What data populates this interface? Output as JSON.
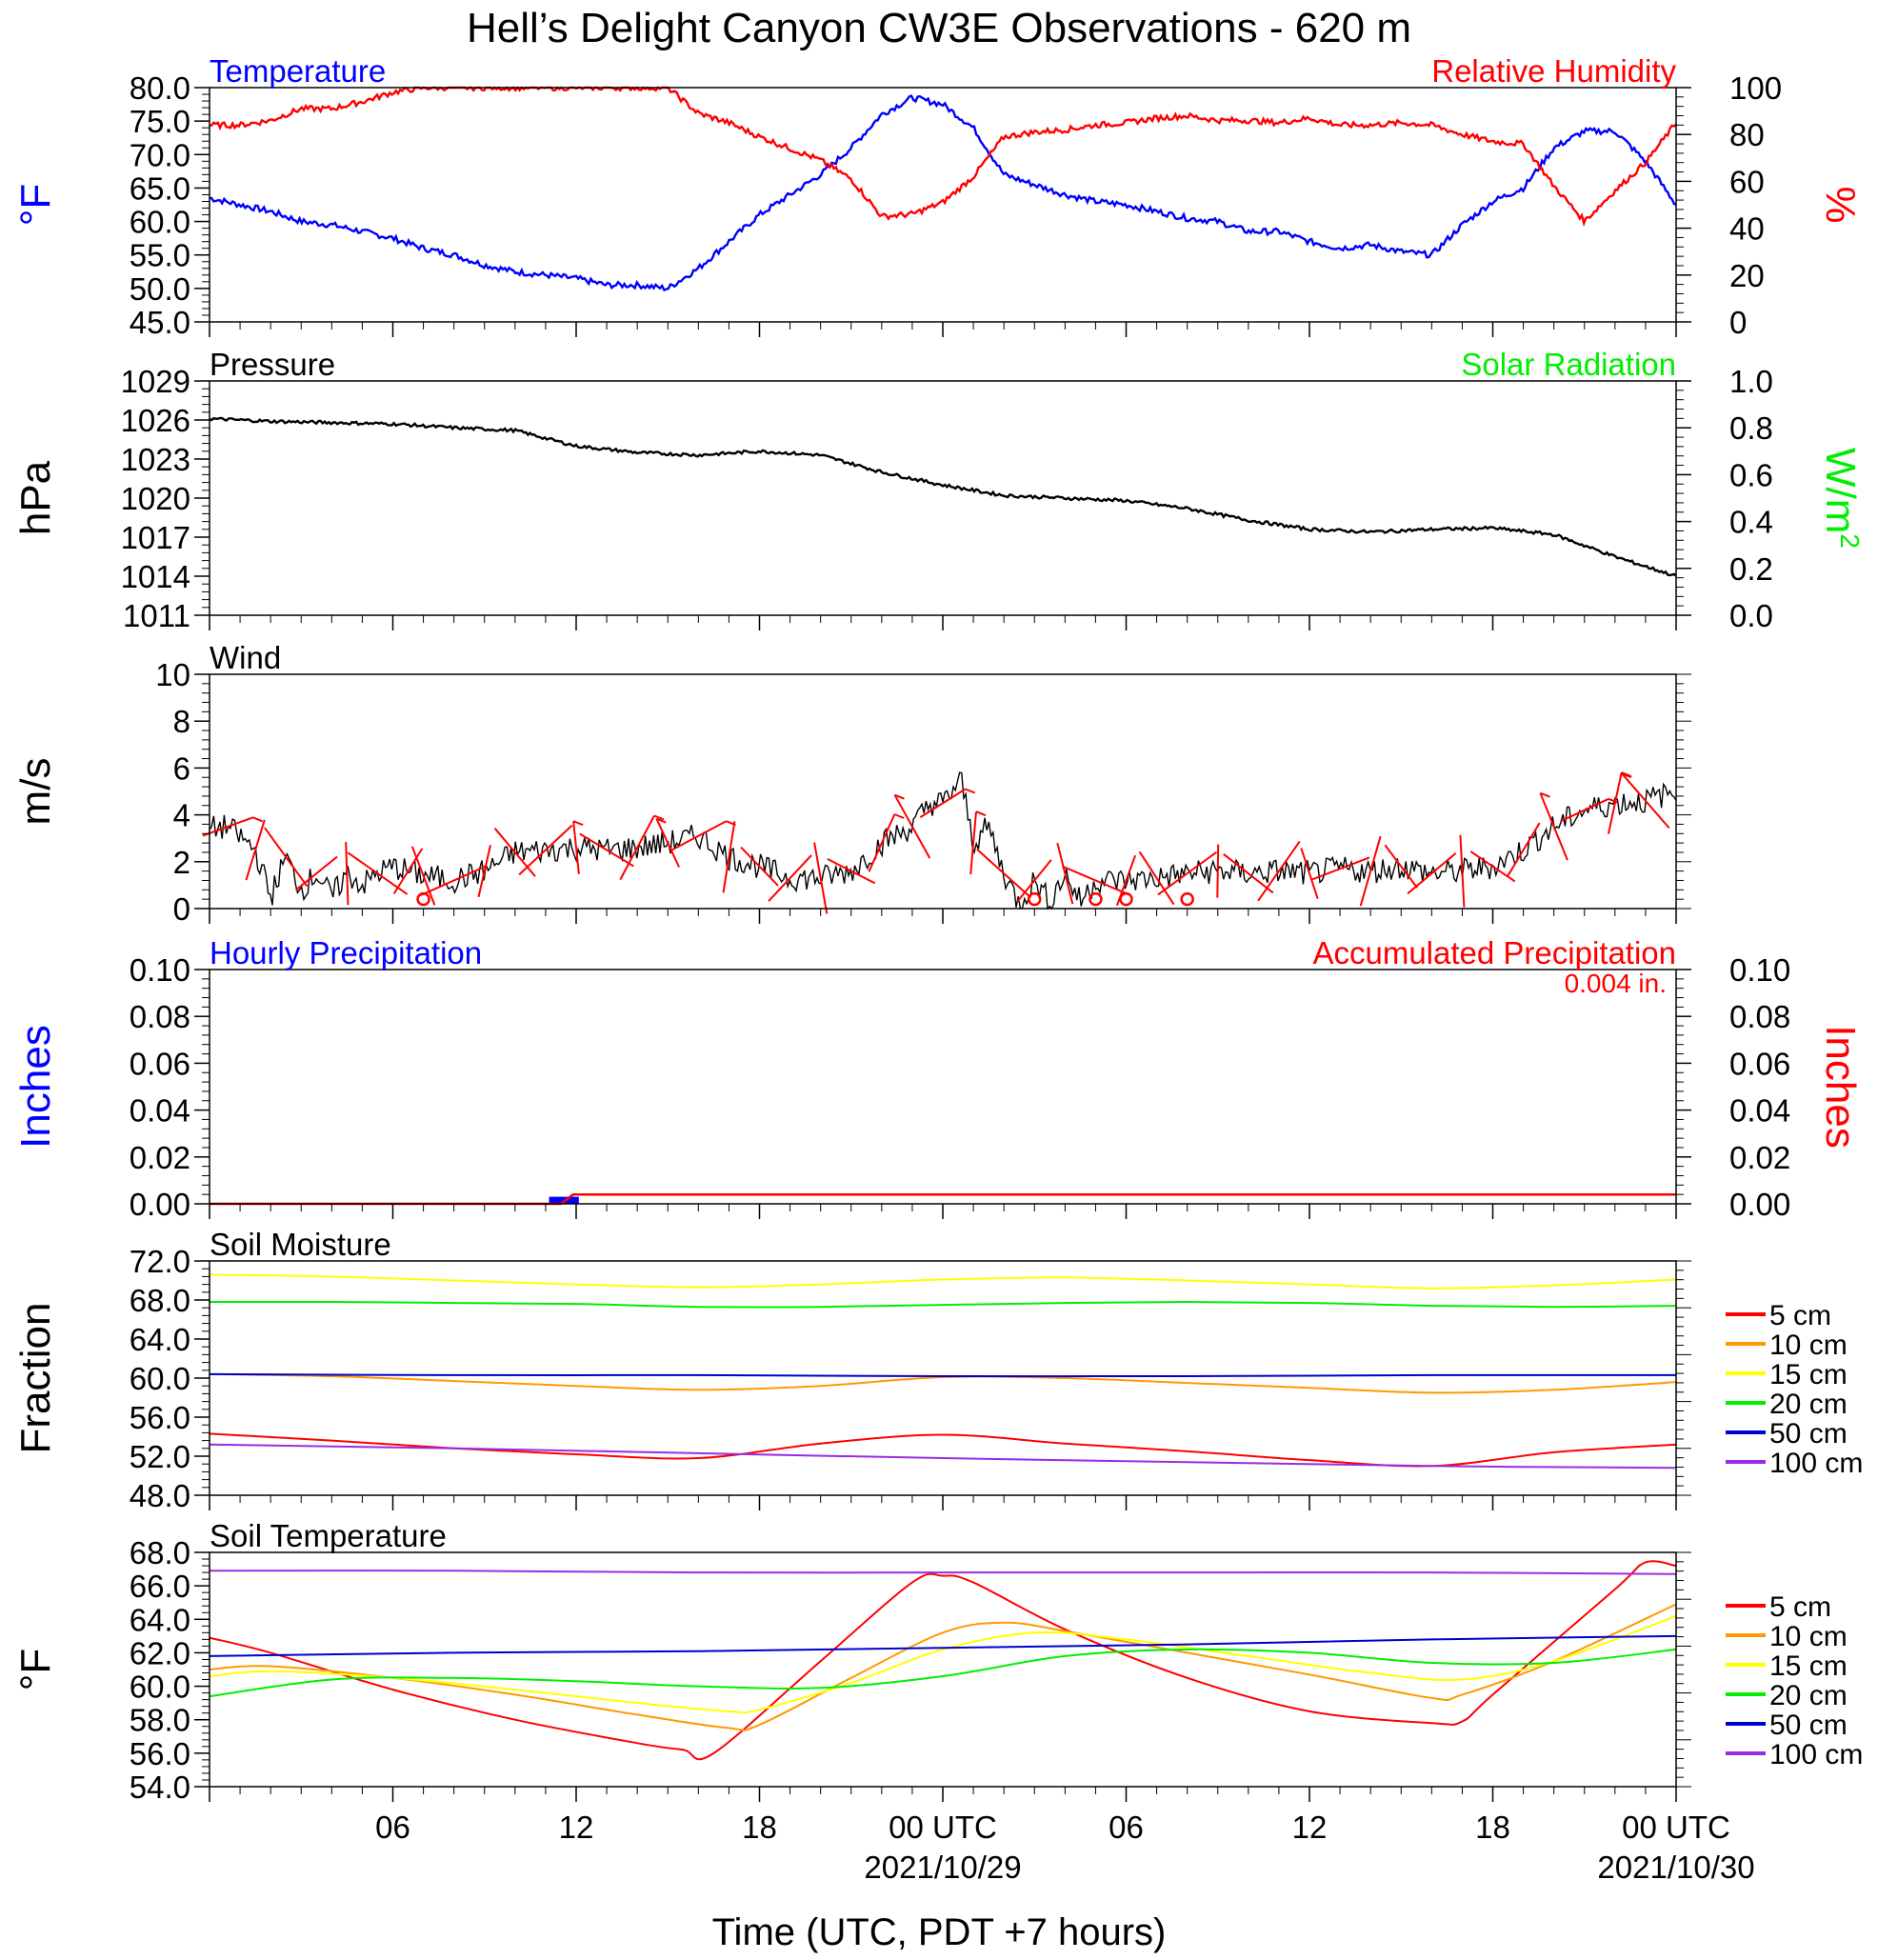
{
  "title": "Hell’s Delight Canyon CW3E Observations - 620 m",
  "x_axis": {
    "label": "Time (UTC, PDT +7 hours)",
    "ticks": [
      {
        "h": 6,
        "label": "06",
        "date": ""
      },
      {
        "h": 12,
        "label": "12",
        "date": ""
      },
      {
        "h": 18,
        "label": "18",
        "date": ""
      },
      {
        "h": 24,
        "label": "00 UTC",
        "date": "2021/10/29"
      },
      {
        "h": 30,
        "label": "06",
        "date": ""
      },
      {
        "h": 36,
        "label": "12",
        "date": ""
      },
      {
        "h": 42,
        "label": "18",
        "date": ""
      },
      {
        "h": 48,
        "label": "00 UTC",
        "date": "2021/10/30"
      }
    ]
  },
  "colors": {
    "blue": "#0000ff",
    "red": "#ff0000",
    "green": "#00ee00",
    "orange": "#ff9900",
    "yellow": "#ffff00",
    "purple": "#9a2be2",
    "black": "#000000"
  },
  "chart_data": [
    {
      "type": "line",
      "id": "temp_rh",
      "title_left": "Temperature",
      "title_right": "Relative Humidity",
      "ylabel_left": "°F",
      "ylabel_right": "%",
      "ylim_left": [
        45,
        80
      ],
      "yticks_left": [
        "45.0",
        "50.0",
        "55.0",
        "60.0",
        "65.0",
        "70.0",
        "75.0",
        "80.0"
      ],
      "ylim_right": [
        0,
        100
      ],
      "yticks_right": [
        "0",
        "20",
        "40",
        "60",
        "80",
        "100"
      ],
      "series": [
        {
          "name": "Temperature",
          "axis": "left",
          "color": "#0000ff",
          "noise": 0.45,
          "x": [
            0,
            1,
            2,
            3,
            4,
            5,
            6,
            7,
            8,
            9,
            10,
            11,
            12,
            13,
            14,
            15,
            16,
            17,
            18,
            19,
            20,
            21,
            22,
            23,
            24,
            25,
            26,
            27,
            28,
            29,
            30,
            31,
            32,
            33,
            34,
            35,
            36,
            37,
            38,
            39,
            40,
            41,
            42,
            43,
            44,
            45,
            46,
            47,
            48
          ],
          "y": [
            63.5,
            62.5,
            61.5,
            60,
            59.5,
            58.5,
            57.5,
            56,
            55,
            53.5,
            52.5,
            52,
            51.5,
            50.5,
            50.5,
            50,
            53,
            57,
            61,
            64,
            67,
            71,
            76,
            78.5,
            77.5,
            74,
            67,
            65.5,
            64,
            63,
            62.5,
            61.5,
            60.5,
            60,
            58.5,
            58.5,
            57,
            56,
            56.5,
            55.5,
            55,
            59.5,
            63,
            65,
            71,
            73.5,
            73.5,
            69,
            62.5
          ]
        },
        {
          "name": "Relative Humidity",
          "axis": "right",
          "color": "#ff0000",
          "noise": 1.2,
          "x": [
            0,
            1,
            2,
            3,
            4,
            5,
            6,
            7,
            8,
            9,
            10,
            11,
            12,
            13,
            14,
            15,
            16,
            17,
            18,
            19,
            20,
            21,
            22,
            23,
            24,
            25,
            26,
            27,
            28,
            29,
            30,
            31,
            32,
            33,
            34,
            35,
            36,
            37,
            38,
            39,
            40,
            41,
            42,
            43,
            44,
            45,
            46,
            47,
            48
          ],
          "y": [
            84,
            84,
            86,
            91,
            91,
            94,
            98,
            100,
            100,
            100,
            100,
            100,
            100,
            100,
            100,
            100,
            89,
            85,
            79,
            74,
            69,
            61,
            45,
            46,
            51,
            62,
            79,
            81,
            82,
            84,
            85,
            87,
            88,
            86,
            86,
            85,
            87,
            84,
            84,
            85,
            84,
            80,
            77,
            76,
            58,
            43,
            56,
            68,
            85
          ]
        }
      ]
    },
    {
      "type": "line",
      "id": "pressure",
      "title_left": "Pressure",
      "title_right": "Solar Radiation",
      "ylabel_left": "hPa",
      "ylabel_right": "W/m",
      "ylabel_right_sup": "2",
      "ylim_left": [
        1011,
        1029
      ],
      "yticks_left": [
        "1011",
        "1014",
        "1017",
        "1020",
        "1023",
        "1026",
        "1029"
      ],
      "ylim_right": [
        0,
        1
      ],
      "yticks_right": [
        "0.0",
        "0.2",
        "0.4",
        "0.6",
        "0.8",
        "1.0"
      ],
      "series": [
        {
          "name": "Pressure",
          "axis": "left",
          "color": "#000000",
          "noise": 0.12,
          "x": [
            0,
            2,
            4,
            6,
            8,
            10,
            12,
            14,
            16,
            18,
            20,
            22,
            24,
            26,
            28,
            30,
            32,
            34,
            36,
            38,
            40,
            42,
            44,
            46,
            48
          ],
          "y": [
            1026.1,
            1025.9,
            1025.8,
            1025.7,
            1025.4,
            1025.2,
            1024.0,
            1023.5,
            1023.3,
            1023.6,
            1023.3,
            1022.0,
            1021.0,
            1020.2,
            1020.0,
            1019.8,
            1019.2,
            1018.3,
            1017.6,
            1017.4,
            1017.6,
            1017.7,
            1017.2,
            1015.5,
            1014.0
          ]
        }
      ]
    },
    {
      "type": "line",
      "id": "wind",
      "title_left": "Wind",
      "ylabel_left": "m/s",
      "ylim_left": [
        0,
        10
      ],
      "yticks_left": [
        "0",
        "2",
        "4",
        "6",
        "8",
        "10"
      ],
      "series": [
        {
          "name": "Wind",
          "axis": "left",
          "color": "#000000",
          "noise": 0.55,
          "x": [
            0,
            0.6,
            1.5,
            2,
            2.5,
            3,
            3.5,
            4,
            4.5,
            5,
            5.5,
            6,
            7,
            8,
            9,
            10,
            11,
            12,
            13,
            14,
            15,
            16,
            17,
            18,
            19,
            20,
            21,
            22,
            23,
            23.6,
            24,
            24.6,
            25,
            25.5,
            26,
            26.5,
            27,
            27.5,
            28,
            28.5,
            29,
            30,
            31,
            32,
            33,
            34,
            35,
            36,
            37,
            38,
            39,
            40,
            41,
            42,
            43,
            44,
            45,
            46,
            47,
            48
          ],
          "y": [
            3.4,
            3.5,
            2.5,
            0.5,
            2.2,
            0.8,
            1.5,
            0.5,
            1.5,
            1.0,
            1.5,
            1.8,
            1.4,
            1.2,
            1.6,
            2.4,
            2.5,
            2.6,
            2.5,
            2.6,
            2.8,
            3.1,
            2.2,
            1.8,
            1.3,
            1.3,
            1.6,
            2.8,
            3.5,
            4.5,
            4.5,
            5.5,
            2.8,
            3.5,
            1.5,
            0.2,
            1.2,
            0.3,
            1.5,
            0.3,
            1.2,
            1.2,
            1.3,
            1.5,
            1.6,
            1.5,
            1.6,
            1.5,
            1.7,
            1.6,
            1.8,
            1.5,
            1.6,
            1.8,
            2.5,
            3.5,
            4.2,
            4.5,
            4.6,
            5.0
          ]
        }
      ],
      "barb_times": [
        0.6,
        1.5,
        2.5,
        3.5,
        4.5,
        5.5,
        6.5,
        7,
        8,
        9,
        10,
        11,
        12,
        13,
        14,
        15,
        16,
        17,
        18,
        19,
        20,
        21,
        22,
        23,
        24,
        25,
        26,
        27,
        28,
        29,
        30,
        31,
        32,
        33,
        34,
        35,
        36,
        37,
        38,
        39,
        40,
        41,
        42,
        43,
        44,
        45,
        46,
        47
      ],
      "calm_times": [
        7,
        27,
        29,
        30,
        32
      ],
      "barb_color": "#ff0000"
    },
    {
      "type": "bar",
      "id": "precip",
      "title_left": "Hourly Precipitation",
      "title_right": "Accumulated Precipitation",
      "annotation": "0.004 in.",
      "ylabel_left": "Inches",
      "ylabel_right": "Inches",
      "ylim_left": [
        0,
        0.1
      ],
      "yticks_left": [
        "0.00",
        "0.02",
        "0.04",
        "0.06",
        "0.08",
        "0.10"
      ],
      "ylim_right": [
        0,
        0.1
      ],
      "yticks_right": [
        "0.00",
        "0.02",
        "0.04",
        "0.06",
        "0.08",
        "0.10"
      ],
      "hourly": [
        {
          "x": 11.3,
          "value": 0.003
        },
        {
          "x": 11.6,
          "value": 0.003
        },
        {
          "x": 11.9,
          "value": 0.003
        }
      ],
      "accumulated": {
        "x": [
          0,
          11.5,
          11.9,
          48
        ],
        "y": [
          0,
          0,
          0.004,
          0.004
        ]
      }
    },
    {
      "type": "line",
      "id": "soil_moisture",
      "title_left": "Soil Moisture",
      "ylabel_left": "Fraction",
      "ylim_left": [
        48,
        72
      ],
      "yticks_left": [
        "48.0",
        "52.0",
        "56.0",
        "60.0",
        "64.0",
        "68.0",
        "72.0"
      ],
      "legend": "right",
      "series": [
        {
          "name": "5 cm",
          "color": "#ff0000",
          "x": [
            0,
            4,
            8,
            12,
            16,
            20,
            24,
            28,
            32,
            36,
            40,
            44,
            48
          ],
          "y": [
            54.3,
            53.6,
            52.8,
            52.2,
            51.8,
            53.3,
            54.2,
            53.3,
            52.5,
            51.6,
            51.0,
            52.4,
            53.2
          ]
        },
        {
          "name": "10 cm",
          "color": "#ff9900",
          "x": [
            0,
            4,
            8,
            12,
            16,
            20,
            24,
            28,
            32,
            36,
            40,
            44,
            48
          ],
          "y": [
            60.4,
            60.2,
            59.7,
            59.2,
            58.8,
            59.2,
            60.1,
            60.0,
            59.5,
            59.0,
            58.5,
            58.8,
            59.6
          ]
        },
        {
          "name": "15 cm",
          "color": "#ffff00",
          "x": [
            0,
            4,
            8,
            12,
            16,
            20,
            24,
            28,
            32,
            36,
            40,
            44,
            48
          ],
          "y": [
            70.6,
            70.4,
            70.0,
            69.6,
            69.3,
            69.6,
            70.1,
            70.3,
            70.0,
            69.6,
            69.2,
            69.5,
            70.1
          ]
        },
        {
          "name": "20 cm",
          "color": "#00ee00",
          "x": [
            0,
            4,
            8,
            12,
            16,
            20,
            24,
            28,
            32,
            36,
            40,
            44,
            48
          ],
          "y": [
            67.8,
            67.8,
            67.7,
            67.6,
            67.3,
            67.3,
            67.5,
            67.7,
            67.8,
            67.7,
            67.4,
            67.3,
            67.4
          ]
        },
        {
          "name": "50 cm",
          "color": "#0000cc",
          "x": [
            0,
            8,
            16,
            24,
            32,
            40,
            48
          ],
          "y": [
            60.4,
            60.3,
            60.3,
            60.2,
            60.2,
            60.3,
            60.3
          ]
        },
        {
          "name": "100 cm",
          "color": "#9a2be2",
          "x": [
            0,
            8,
            16,
            24,
            32,
            40,
            48
          ],
          "y": [
            53.2,
            52.8,
            52.3,
            51.8,
            51.4,
            51.0,
            50.8
          ]
        }
      ]
    },
    {
      "type": "line",
      "id": "soil_temperature",
      "title_left": "Soil Temperature",
      "ylabel_left": "°F",
      "ylim_left": [
        54,
        68
      ],
      "yticks_left": [
        "54.0",
        "56.0",
        "58.0",
        "60.0",
        "62.0",
        "64.0",
        "66.0",
        "68.0"
      ],
      "legend": "right",
      "series": [
        {
          "name": "5 cm",
          "color": "#ff0000",
          "x": [
            0,
            2,
            6,
            10,
            14,
            15.5,
            16.5,
            20,
            23,
            24,
            25,
            28,
            32,
            36,
            40,
            41,
            42,
            46,
            47,
            48
          ],
          "y": [
            62.9,
            62.0,
            59.8,
            58.0,
            56.6,
            56.2,
            56.0,
            61.5,
            66.2,
            66.6,
            66.2,
            63.4,
            60.5,
            58.5,
            57.8,
            57.9,
            59.5,
            65.8,
            67.4,
            67.2
          ]
        },
        {
          "name": "10 cm",
          "color": "#ff9900",
          "x": [
            0,
            2,
            6,
            10,
            14,
            17,
            18,
            21,
            24,
            26,
            28,
            32,
            36,
            40,
            41,
            44,
            48
          ],
          "y": [
            61.0,
            61.2,
            60.5,
            59.5,
            58.3,
            57.5,
            57.7,
            60.5,
            63.2,
            63.8,
            63.3,
            62.0,
            60.7,
            59.3,
            59.5,
            61.5,
            64.9
          ]
        },
        {
          "name": "15 cm",
          "color": "#ffff00",
          "x": [
            0,
            2,
            6,
            10,
            14,
            17,
            18,
            21,
            24,
            27,
            30,
            34,
            38,
            41,
            44,
            48
          ],
          "y": [
            60.6,
            60.9,
            60.5,
            59.8,
            59.0,
            58.5,
            58.6,
            60.2,
            62.2,
            63.2,
            62.8,
            61.8,
            60.8,
            60.4,
            61.5,
            64.2
          ]
        },
        {
          "name": "20 cm",
          "color": "#00ee00",
          "x": [
            0,
            4,
            8,
            12,
            16,
            20,
            24,
            28,
            32,
            36,
            40,
            44,
            48
          ],
          "y": [
            59.4,
            60.4,
            60.5,
            60.3,
            60.0,
            59.9,
            60.6,
            61.8,
            62.2,
            62.0,
            61.4,
            61.4,
            62.2
          ]
        },
        {
          "name": "50 cm",
          "color": "#0000cc",
          "x": [
            0,
            8,
            16,
            24,
            32,
            40,
            48
          ],
          "y": [
            61.8,
            62.0,
            62.1,
            62.3,
            62.5,
            62.8,
            63.0
          ]
        },
        {
          "name": "100 cm",
          "color": "#9a2be2",
          "x": [
            0,
            8,
            16,
            24,
            32,
            40,
            48
          ],
          "y": [
            66.9,
            66.9,
            66.8,
            66.8,
            66.8,
            66.8,
            66.7
          ]
        }
      ]
    }
  ]
}
